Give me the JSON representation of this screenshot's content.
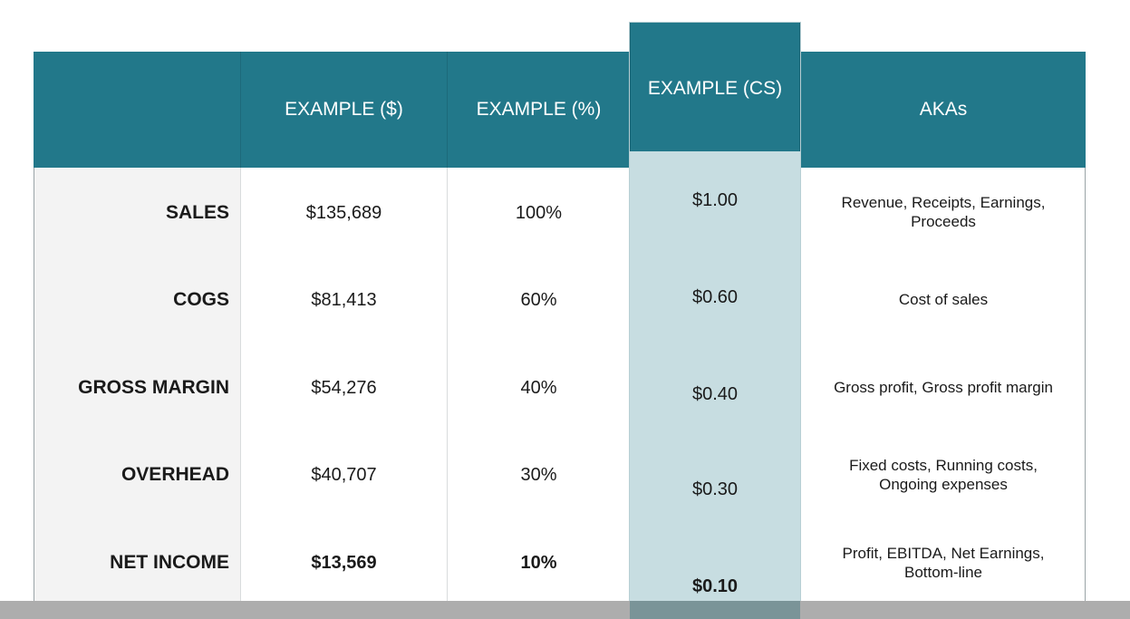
{
  "header": {
    "col_label": "",
    "col_dollars": "EXAMPLE ($)",
    "col_percent": "EXAMPLE (%)",
    "col_cs": "EXAMPLE (CS)",
    "col_akas": "AKAs"
  },
  "rows": [
    {
      "label": "SALES",
      "dollars": "$135,689",
      "percent": "100%",
      "cs": "$1.00",
      "aka_line1": "Revenue, Receipts, Earnings,",
      "aka_line2": "Proceeds"
    },
    {
      "label": "COGS",
      "dollars": "$81,413",
      "percent": "60%",
      "cs": "$0.60",
      "aka_line1": "Cost of sales",
      "aka_line2": ""
    },
    {
      "label": "GROSS MARGIN",
      "dollars": "$54,276",
      "percent": "40%",
      "cs": "$0.40",
      "aka_line1": "Gross profit, Gross profit margin",
      "aka_line2": ""
    },
    {
      "label": "OVERHEAD",
      "dollars": "$40,707",
      "percent": "30%",
      "cs": "$0.30",
      "aka_line1": "Fixed costs, Running costs,",
      "aka_line2": "Ongoing expenses"
    },
    {
      "label": "NET INCOME",
      "dollars": "$13,569",
      "percent": "10%",
      "cs": "$0.10",
      "aka_line1": "Profit, EBITDA, Net Earnings,",
      "aka_line2": "Bottom-line"
    }
  ],
  "colors": {
    "header_teal": "#22788a",
    "highlight_column": "#c7dde1",
    "label_column": "#f3f3f3"
  }
}
